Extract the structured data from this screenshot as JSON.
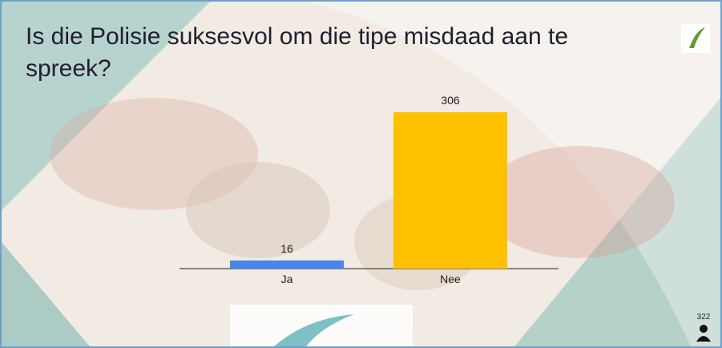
{
  "chart_data": {
    "type": "bar",
    "title": "Is die Polisie suksesvol om die tipe misdaad aan te spreek?",
    "categories": [
      "Ja",
      "Nee"
    ],
    "values": [
      16,
      306
    ],
    "colors": [
      "#4a86e8",
      "#ffc000"
    ],
    "participants": 322
  }
}
